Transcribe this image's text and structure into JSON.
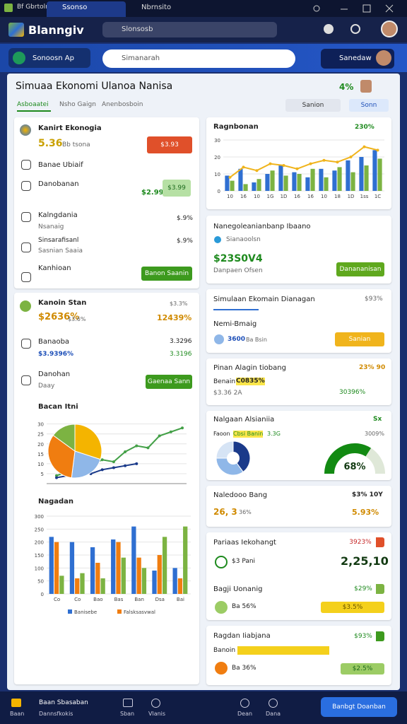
{
  "browser": {
    "tabs": [
      "Bf Gbrtoln",
      "Ssonso",
      "Nbrnsito"
    ]
  },
  "header": {
    "app_name": "Blanngiv",
    "search": "Slonsosb"
  },
  "toolbar": {
    "app_button": "Sonoosn Ap",
    "search": "Simanarah",
    "account_button": "Sanedaw"
  },
  "page": {
    "title": "Simuaa Ekonomi Ulanoa Nanisa",
    "badge": "4%",
    "tabs": [
      "Asboaatei",
      "Nsho Gaign",
      "Anenbosboin"
    ],
    "actions": [
      "Sanion",
      "Sonn"
    ]
  },
  "left_summary": {
    "title": "Kanirt Ekonogia",
    "value": "5.36",
    "caption": "Bb tsona",
    "tag": "$3.93",
    "rows": [
      {
        "label": "Banae Ubiaif"
      },
      {
        "label": "Danobanan",
        "value": "$2.99",
        "tag": "$3.99"
      },
      {
        "label": "Kalngdania",
        "sub": "Nsanaig",
        "value": "$.9%"
      },
      {
        "label": "Sinsarafisanl",
        "sub": "Sasnian Saaia",
        "value": "$.9%"
      },
      {
        "label": "Kanhioan",
        "button": "Banon Saanin"
      }
    ]
  },
  "left_stats": {
    "title": "Kanoin Stan",
    "value": "$2636%",
    "caption": "$3.6%",
    "meta": "$3.3%",
    "change": "12439%",
    "rows": [
      {
        "label": "Banaoba",
        "sub": "$3.9396%",
        "value": "3.3296",
        "change": "3.3196"
      },
      {
        "label": "Danohan",
        "sub": "Daay",
        "button": "Gaenaa Sann"
      }
    ]
  },
  "charts": [
    {
      "type": "combo",
      "title": "Ragnbonan",
      "badge": "230%",
      "categories": [
        "10",
        "16",
        "10",
        "1G",
        "1D",
        "16",
        "16",
        "10",
        "18",
        "1D",
        "1ss",
        "1C"
      ],
      "ylim": [
        0,
        30
      ],
      "yticks": [
        0,
        10,
        20,
        30
      ],
      "series": [
        {
          "type": "bar",
          "color": "#2f6fd1",
          "values": [
            9,
            13,
            5,
            10,
            15,
            11,
            8,
            13,
            12,
            18,
            20,
            24
          ]
        },
        {
          "type": "bar",
          "color": "#7cb342",
          "values": [
            6,
            4,
            7,
            12,
            9,
            10,
            13,
            8,
            14,
            11,
            15,
            19
          ]
        },
        {
          "type": "line",
          "color": "#f0b41c",
          "values": [
            8,
            14,
            12,
            16,
            15,
            13,
            16,
            18,
            17,
            20,
            26,
            24
          ]
        }
      ]
    },
    {
      "type": "pie",
      "title": "Bacan Itni",
      "values": [
        30,
        22,
        33,
        15
      ],
      "colors": [
        "#f4b400",
        "#8fb7e8",
        "#f07d10",
        "#7cb342"
      ]
    },
    {
      "type": "line",
      "ylim": [
        0,
        32
      ],
      "yticks": [
        5,
        10,
        15,
        20,
        25,
        30
      ],
      "series": [
        {
          "color": "#43a047",
          "values": [
            4,
            6,
            5,
            9,
            12,
            11,
            16,
            19,
            18,
            24,
            26,
            28
          ]
        },
        {
          "color": "#1a3a8a",
          "values": [
            3,
            4,
            6,
            5,
            7,
            8,
            9,
            10,
            null,
            null,
            null,
            null
          ]
        }
      ]
    },
    {
      "type": "bar",
      "title": "Nagadan",
      "categories": [
        "Co",
        "Co",
        "Bao",
        "Bas",
        "Ban",
        "Dsa",
        "Bai"
      ],
      "ylim": [
        0,
        300
      ],
      "yticks": [
        0,
        50,
        100,
        150,
        200,
        250,
        300
      ],
      "series": [
        {
          "name": "Banisebe",
          "color": "#2f6fd1",
          "values": [
            220,
            200,
            180,
            210,
            260,
            90,
            100
          ]
        },
        {
          "name": "Falsksasvwal",
          "color": "#f07d10",
          "values": [
            200,
            60,
            120,
            200,
            140,
            150,
            60
          ]
        },
        {
          "color": "#7cb342",
          "values": [
            70,
            80,
            60,
            140,
            100,
            220,
            260
          ]
        }
      ]
    },
    {
      "type": "gauge",
      "value": 68,
      "value_label": "68%",
      "range": [
        0,
        100
      ],
      "color": "#128a12"
    },
    {
      "type": "donut",
      "values": [
        40,
        35,
        25
      ],
      "colors": [
        "#1a3a8a",
        "#8fb7e8",
        "#d6e4f5"
      ]
    }
  ],
  "right_cards": [
    {
      "title": "Nanegoleanianbanp Ibaano",
      "sub": "Sianaoolsn",
      "value": "$23S0V4",
      "caption": "Danpaen Ofsen",
      "button": "Danananisan"
    },
    {
      "title": "Simulaan Ekomain Dianagan",
      "badge": "$93%",
      "label": "Nemi-Bmaig",
      "value": "3600",
      "caption": "Ba Bsin",
      "button": "Sanian"
    },
    {
      "title": "Pinan Alagin tiobang",
      "badge": "23% 90",
      "label": "Benain",
      "highlight": "C0835%",
      "value": "$3.36 2A",
      "change": "30396%"
    },
    {
      "title": "Nalgaan Alsianiia",
      "badge": "Sx",
      "label": "Faoon",
      "highlight": "Cbsi Banin",
      "value": "3.3G",
      "change": "3009%"
    },
    {
      "title": "Naledooo Bang",
      "badge": "$3% 10Y",
      "value": "26, 3",
      "caption": "36%",
      "change": "5.93%"
    },
    {
      "title": "Pariaas Iekohangt",
      "badge": "3923%",
      "label": "$3 Pani",
      "value": "2,25,10"
    },
    {
      "title": "Bagji Uonanig",
      "badge": "$29%",
      "label": "Ba 56%",
      "bar_label": "$3.5%"
    },
    {
      "title": "Ragdan Iiabjana",
      "badge": "$93%",
      "label": "Banoin",
      "sub": "Ba 36%",
      "bar_label": "$2.5%"
    }
  ],
  "bottom_nav": {
    "items": [
      "Baan",
      "Sban",
      "Vlanis",
      "Dean",
      "Dana"
    ],
    "title": "Baan Sbasaban",
    "sub": "Dannsfkokis",
    "button": "Banbgt Doanban"
  }
}
